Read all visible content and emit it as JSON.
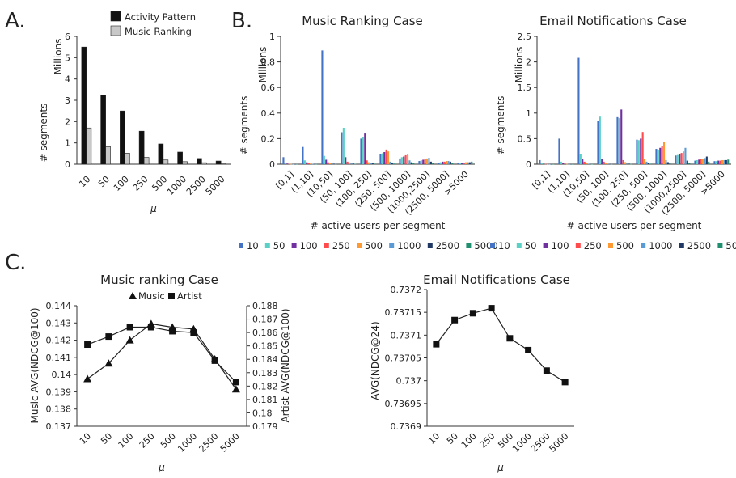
{
  "panel_labels": {
    "a": "A.",
    "b": "B.",
    "c": "C."
  },
  "colors": {
    "activity": "#111111",
    "music": "#c8c8c8",
    "mu_series": [
      "#4472c4",
      "#5bd1c6",
      "#7030a0",
      "#ff4b4b",
      "#ff9a33",
      "#5b9bd5",
      "#1f3864",
      "#1f8f6f"
    ]
  },
  "chart_data": [
    {
      "type": "bar",
      "panel": "A",
      "categories": [
        "10",
        "50",
        "100",
        "250",
        "500",
        "1000",
        "2500",
        "5000"
      ],
      "series": [
        {
          "name": "Activity Pattern",
          "values": [
            5.5,
            3.25,
            2.5,
            1.55,
            0.95,
            0.57,
            0.27,
            0.15
          ]
        },
        {
          "name": "Music Ranking",
          "values": [
            1.7,
            0.82,
            0.52,
            0.32,
            0.2,
            0.12,
            0.07,
            0.04
          ]
        }
      ],
      "xlabel": "μ",
      "ylabel": "# segments",
      "unit_label": "Millions",
      "ylim": [
        0,
        6
      ],
      "yticks": [
        "0",
        "1",
        "2",
        "3",
        "4",
        "5",
        "6"
      ],
      "legend": "top-right"
    },
    {
      "type": "bar",
      "panel": "B-left",
      "title": "Music Ranking Case",
      "categories": [
        "[0,1]",
        "(1,10]",
        "(10,50]",
        "(50, 100]",
        "(100, 250]",
        "(250, 500]",
        "(500, 1000]",
        "(1000,2500]",
        "(2500, 5000]",
        ">5000"
      ],
      "series": [
        {
          "name": "10",
          "values": [
            0.055,
            0.135,
            0.89,
            0.25,
            0.2,
            0.08,
            0.045,
            0.025,
            0.012,
            0.012
          ]
        },
        {
          "name": "50",
          "values": [
            0.01,
            0.03,
            0.065,
            0.285,
            0.21,
            0.085,
            0.055,
            0.03,
            0.015,
            0.012
          ]
        },
        {
          "name": "100",
          "values": [
            0.005,
            0.015,
            0.035,
            0.055,
            0.24,
            0.095,
            0.06,
            0.035,
            0.02,
            0.012
          ]
        },
        {
          "name": "250",
          "values": [
            0.003,
            0.008,
            0.015,
            0.02,
            0.03,
            0.115,
            0.07,
            0.04,
            0.02,
            0.012
          ]
        },
        {
          "name": "500",
          "values": [
            0.002,
            0.005,
            0.01,
            0.012,
            0.015,
            0.1,
            0.075,
            0.045,
            0.025,
            0.015
          ]
        },
        {
          "name": "1000",
          "values": [
            0.001,
            0.003,
            0.006,
            0.008,
            0.01,
            0.02,
            0.03,
            0.05,
            0.025,
            0.015
          ]
        },
        {
          "name": "2500",
          "values": [
            0.001,
            0.002,
            0.004,
            0.005,
            0.006,
            0.01,
            0.015,
            0.02,
            0.02,
            0.015
          ]
        },
        {
          "name": "5000",
          "values": [
            0.001,
            0.001,
            0.002,
            0.003,
            0.004,
            0.005,
            0.008,
            0.01,
            0.01,
            0.02
          ]
        }
      ],
      "xlabel": "# active users per segment",
      "ylabel": "# segments",
      "unit_label": "Millions",
      "ylim": [
        0,
        1
      ],
      "yticks": [
        "0",
        "0.2",
        "0.4",
        "0.6",
        "0.8",
        "1"
      ],
      "legend": "bottom"
    },
    {
      "type": "bar",
      "panel": "B-right",
      "title": "Email Notifications Case",
      "categories": [
        "[0,1]",
        "(1,10]",
        "(10,50]",
        "(50, 100]",
        "(100, 250]",
        "(250, 500]",
        "(500, 1000]",
        "(1000,2500]",
        "(2500, 5000]",
        ">5000"
      ],
      "series": [
        {
          "name": "10",
          "values": [
            0.08,
            0.5,
            2.08,
            0.85,
            0.92,
            0.48,
            0.3,
            0.17,
            0.07,
            0.06
          ]
        },
        {
          "name": "50",
          "values": [
            0.02,
            0.05,
            0.2,
            0.93,
            0.9,
            0.47,
            0.28,
            0.18,
            0.08,
            0.06
          ]
        },
        {
          "name": "100",
          "values": [
            0.01,
            0.03,
            0.1,
            0.1,
            1.07,
            0.5,
            0.32,
            0.2,
            0.09,
            0.07
          ]
        },
        {
          "name": "250",
          "values": [
            0.005,
            0.01,
            0.05,
            0.05,
            0.08,
            0.63,
            0.35,
            0.22,
            0.1,
            0.07
          ]
        },
        {
          "name": "500",
          "values": [
            0.003,
            0.005,
            0.02,
            0.03,
            0.04,
            0.1,
            0.43,
            0.25,
            0.11,
            0.08
          ]
        },
        {
          "name": "1000",
          "values": [
            0.002,
            0.003,
            0.01,
            0.01,
            0.02,
            0.05,
            0.08,
            0.32,
            0.12,
            0.08
          ]
        },
        {
          "name": "2500",
          "values": [
            0.001,
            0.002,
            0.005,
            0.005,
            0.01,
            0.02,
            0.04,
            0.07,
            0.15,
            0.08
          ]
        },
        {
          "name": "5000",
          "values": [
            0.001,
            0.001,
            0.002,
            0.003,
            0.005,
            0.01,
            0.02,
            0.03,
            0.05,
            0.09
          ]
        }
      ],
      "xlabel": "# active users per segment",
      "ylabel": "# segments",
      "unit_label": "Millions",
      "ylim": [
        0,
        2.5
      ],
      "yticks": [
        "0",
        "0.5",
        "1",
        "1.5",
        "2",
        "2.5"
      ],
      "legend": "bottom"
    },
    {
      "type": "line",
      "panel": "C-left",
      "title": "Music ranking Case",
      "x": [
        "10",
        "50",
        "100",
        "250",
        "500",
        "1000",
        "2500",
        "5000"
      ],
      "series": [
        {
          "name": "Music",
          "axis": "left",
          "marker": "triangle",
          "values": [
            0.13975,
            0.14065,
            0.142,
            0.14295,
            0.14275,
            0.14265,
            0.1409,
            0.13915
          ]
        },
        {
          "name": "Artist",
          "axis": "right",
          "marker": "square",
          "values": [
            0.1851,
            0.1857,
            0.1864,
            0.1864,
            0.1861,
            0.186,
            0.1839,
            0.1823
          ]
        }
      ],
      "xlabel": "μ",
      "ylabel": "Music AVG(NDCG@100)",
      "ylabel_right": "Artist AVG(NDCG@100)",
      "ylim": [
        0.137,
        0.144
      ],
      "ylim_right": [
        0.179,
        0.188
      ],
      "yticks": [
        "0.137",
        "0.138",
        "0.139",
        "0.14",
        "0.141",
        "0.142",
        "0.143",
        "0.144"
      ],
      "yticks_right": [
        "0.179",
        "0.18",
        "0.181",
        "0.182",
        "0.183",
        "0.184",
        "0.185",
        "0.186",
        "0.187",
        "0.188"
      ],
      "legend": "top"
    },
    {
      "type": "line",
      "panel": "C-right",
      "title": "Email Notifications Case",
      "x": [
        "10",
        "50",
        "100",
        "250",
        "500",
        "1000",
        "2500",
        "5000"
      ],
      "series": [
        {
          "name": "",
          "marker": "square",
          "values": [
            0.73708,
            0.737133,
            0.737148,
            0.737159,
            0.737093,
            0.737067,
            0.737022,
            0.736997
          ]
        }
      ],
      "xlabel": "μ",
      "ylabel": "AVG(NDCG@24)",
      "ylim": [
        0.7369,
        0.7372
      ],
      "yticks": [
        "0.7369",
        "0.73695",
        "0.737",
        "0.73705",
        "0.7371",
        "0.73715",
        "0.7372"
      ]
    }
  ]
}
